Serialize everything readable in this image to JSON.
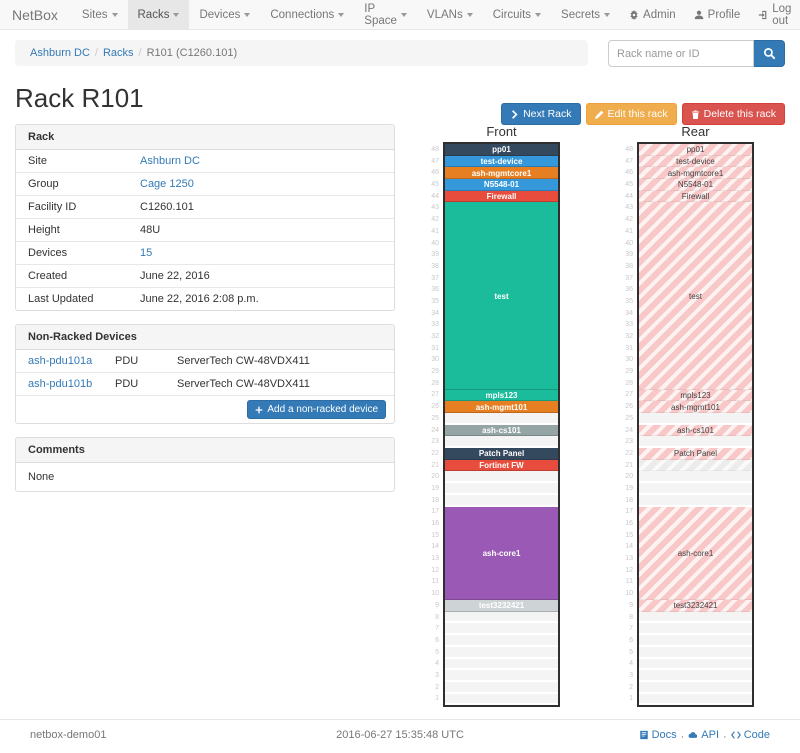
{
  "theme": {
    "link_color": "#337ab7",
    "device_colors": {
      "navy": "#34495e",
      "blue": "#3498db",
      "orange": "#e67e22",
      "red": "#e74c3c",
      "green": "#1abc9c",
      "purple": "#9b59b6",
      "gray": "#95a5a6",
      "lightgray": "#ced4d6"
    }
  },
  "navbar": {
    "brand": "NetBox",
    "items": [
      {
        "label": "Sites",
        "active": false
      },
      {
        "label": "Racks",
        "active": true
      },
      {
        "label": "Devices",
        "active": false
      },
      {
        "label": "Connections",
        "active": false
      },
      {
        "label": "IP Space",
        "active": false
      },
      {
        "label": "VLANs",
        "active": false
      },
      {
        "label": "Circuits",
        "active": false
      },
      {
        "label": "Secrets",
        "active": false
      }
    ],
    "right_items": [
      {
        "label": "Admin",
        "icon": "gear-icon"
      },
      {
        "label": "Profile",
        "icon": "user-icon"
      },
      {
        "label": "Log out",
        "icon": "logout-icon"
      }
    ]
  },
  "breadcrumb": {
    "items": [
      {
        "label": "Ashburn DC",
        "link": true
      },
      {
        "label": "Racks",
        "link": true
      },
      {
        "label": "R101 (C1260.101)",
        "link": false
      }
    ]
  },
  "search": {
    "placeholder": "Rack name or ID"
  },
  "header": {
    "title": "Rack R101"
  },
  "actions": [
    {
      "label": "Next Rack",
      "style": "primary",
      "icon": "chevron-right-icon"
    },
    {
      "label": "Edit this rack",
      "style": "warning",
      "icon": "pencil-icon"
    },
    {
      "label": "Delete this rack",
      "style": "danger",
      "icon": "trash-icon"
    }
  ],
  "rack_info": {
    "title": "Rack",
    "rows": [
      {
        "label": "Site",
        "value": "Ashburn DC",
        "link": true
      },
      {
        "label": "Group",
        "value": "Cage 1250",
        "link": true
      },
      {
        "label": "Facility ID",
        "value": "C1260.101",
        "link": false
      },
      {
        "label": "Height",
        "value": "48U",
        "link": false
      },
      {
        "label": "Devices",
        "value": "15",
        "link": true
      },
      {
        "label": "Created",
        "value": "June 22, 2016",
        "link": false
      },
      {
        "label": "Last Updated",
        "value": "June 22, 2016 2:08 p.m.",
        "link": false
      }
    ]
  },
  "non_racked": {
    "title": "Non-Racked Devices",
    "rows": [
      {
        "name": "ash-pdu101a",
        "role": "PDU",
        "model": "ServerTech CW-48VDX411"
      },
      {
        "name": "ash-pdu101b",
        "role": "PDU",
        "model": "ServerTech CW-48VDX411"
      }
    ],
    "add_button": "Add a non-racked device"
  },
  "comments": {
    "title": "Comments",
    "body": "None"
  },
  "rack_elevation": {
    "total_units": 48,
    "front": {
      "title": "Front",
      "slots": [
        {
          "u": 48,
          "span": 1,
          "label": "pp01",
          "color": "navy"
        },
        {
          "u": 47,
          "span": 1,
          "label": "test-device",
          "color": "blue"
        },
        {
          "u": 46,
          "span": 1,
          "label": "ash-mgmtcore1",
          "color": "orange"
        },
        {
          "u": 45,
          "span": 1,
          "label": "N5548-01",
          "color": "blue"
        },
        {
          "u": 44,
          "span": 1,
          "label": "Firewall",
          "color": "red"
        },
        {
          "u": 43,
          "span": 16,
          "label": "test",
          "color": "green"
        },
        {
          "u": 27,
          "span": 1,
          "label": "mpls123",
          "color": "green"
        },
        {
          "u": 26,
          "span": 1,
          "label": "ash-mgmt101",
          "color": "orange"
        },
        {
          "u": 25,
          "span": 1,
          "label": "",
          "color": "empty"
        },
        {
          "u": 24,
          "span": 1,
          "label": "ash-cs101",
          "color": "gray"
        },
        {
          "u": 23,
          "span": 1,
          "label": "",
          "color": "empty"
        },
        {
          "u": 22,
          "span": 1,
          "label": "Patch Panel",
          "color": "navy"
        },
        {
          "u": 21,
          "span": 1,
          "label": "Fortinet FW",
          "color": "red"
        },
        {
          "u": 20,
          "span": 1,
          "label": "",
          "color": "empty"
        },
        {
          "u": 19,
          "span": 1,
          "label": "",
          "color": "empty"
        },
        {
          "u": 18,
          "span": 1,
          "label": "",
          "color": "empty"
        },
        {
          "u": 17,
          "span": 8,
          "label": "ash-core1",
          "color": "purple"
        },
        {
          "u": 9,
          "span": 1,
          "label": "test3232421",
          "color": "lightgray"
        },
        {
          "u": 8,
          "span": 1,
          "label": "",
          "color": "empty"
        },
        {
          "u": 7,
          "span": 1,
          "label": "",
          "color": "empty"
        },
        {
          "u": 6,
          "span": 1,
          "label": "",
          "color": "empty"
        },
        {
          "u": 5,
          "span": 1,
          "label": "",
          "color": "empty"
        },
        {
          "u": 4,
          "span": 1,
          "label": "",
          "color": "empty"
        },
        {
          "u": 3,
          "span": 1,
          "label": "",
          "color": "empty"
        },
        {
          "u": 2,
          "span": 1,
          "label": "",
          "color": "empty"
        },
        {
          "u": 1,
          "span": 1,
          "label": "",
          "color": "empty"
        }
      ]
    },
    "rear": {
      "title": "Rear",
      "slots": [
        {
          "u": 48,
          "span": 1,
          "label": "pp01",
          "color": "hatch"
        },
        {
          "u": 47,
          "span": 1,
          "label": "test-device",
          "color": "hatch"
        },
        {
          "u": 46,
          "span": 1,
          "label": "ash-mgmtcore1",
          "color": "hatch"
        },
        {
          "u": 45,
          "span": 1,
          "label": "N5548-01",
          "color": "hatch"
        },
        {
          "u": 44,
          "span": 1,
          "label": "Firewall",
          "color": "hatch"
        },
        {
          "u": 43,
          "span": 16,
          "label": "test",
          "color": "hatch"
        },
        {
          "u": 27,
          "span": 1,
          "label": "mpls123",
          "color": "hatch"
        },
        {
          "u": 26,
          "span": 1,
          "label": "ash-mgmt101",
          "color": "hatch"
        },
        {
          "u": 25,
          "span": 1,
          "label": "",
          "color": "empty"
        },
        {
          "u": 24,
          "span": 1,
          "label": "ash-cs101",
          "color": "hatch"
        },
        {
          "u": 23,
          "span": 1,
          "label": "",
          "color": "empty"
        },
        {
          "u": 22,
          "span": 1,
          "label": "Patch Panel",
          "color": "hatch"
        },
        {
          "u": 21,
          "span": 1,
          "label": "",
          "color": "ghost"
        },
        {
          "u": 20,
          "span": 1,
          "label": "",
          "color": "empty"
        },
        {
          "u": 19,
          "span": 1,
          "label": "",
          "color": "empty"
        },
        {
          "u": 18,
          "span": 1,
          "label": "",
          "color": "empty"
        },
        {
          "u": 17,
          "span": 8,
          "label": "ash-core1",
          "color": "hatch"
        },
        {
          "u": 9,
          "span": 1,
          "label": "test3232421",
          "color": "hatch"
        },
        {
          "u": 8,
          "span": 1,
          "label": "",
          "color": "empty"
        },
        {
          "u": 7,
          "span": 1,
          "label": "",
          "color": "empty"
        },
        {
          "u": 6,
          "span": 1,
          "label": "",
          "color": "empty"
        },
        {
          "u": 5,
          "span": 1,
          "label": "",
          "color": "empty"
        },
        {
          "u": 4,
          "span": 1,
          "label": "",
          "color": "empty"
        },
        {
          "u": 3,
          "span": 1,
          "label": "",
          "color": "empty"
        },
        {
          "u": 2,
          "span": 1,
          "label": "",
          "color": "empty"
        },
        {
          "u": 1,
          "span": 1,
          "label": "",
          "color": "empty"
        }
      ]
    }
  },
  "footer": {
    "hostname": "netbox-demo01",
    "timestamp": "2016-06-27 15:35:48 UTC",
    "links": [
      {
        "label": "Docs",
        "icon": "book-icon"
      },
      {
        "label": "API",
        "icon": "cloud-icon"
      },
      {
        "label": "Code",
        "icon": "code-icon"
      }
    ]
  }
}
